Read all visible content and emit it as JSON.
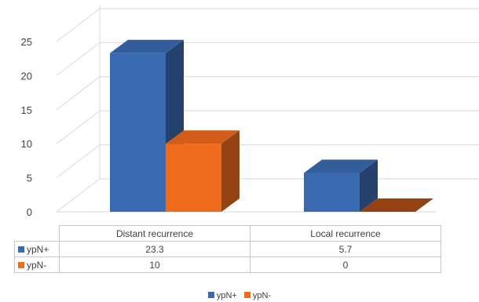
{
  "chart_data": {
    "type": "bar",
    "subtype": "3d-clustered-column-with-data-table",
    "categories": [
      "Distant recurrence",
      "Local recurrence"
    ],
    "series": [
      {
        "name": "ypN+",
        "values": [
          23.3,
          5.7
        ],
        "color": "#3a6ab0"
      },
      {
        "name": "ypN-",
        "values": [
          10,
          0
        ],
        "color": "#ee6a1c"
      }
    ],
    "yticks": [
      "0",
      "5",
      "10",
      "15",
      "20",
      "25"
    ],
    "ylim": [
      0,
      25
    ],
    "grid": true,
    "legend_position": "bottom",
    "data_table": {
      "rows": [
        {
          "label": "ypN+",
          "values": [
            "23.3",
            "5.7"
          ]
        },
        {
          "label": "ypN-",
          "values": [
            "10",
            "0"
          ]
        }
      ]
    }
  }
}
